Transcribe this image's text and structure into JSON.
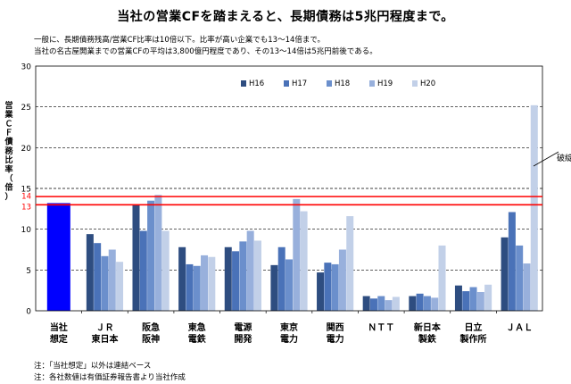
{
  "page": {
    "title": "当社の営業CFを踏まえると、長期債務は5兆円程度まで。",
    "desc_lines": [
      "一般に、長期債務残高/営業CF比率は10倍以下。比率が高い企業でも13～14倍まで。",
      "当社の名古屋開業までの営業CFの平均は3,800億円程度であり、その13～14倍は5兆円前後である。"
    ],
    "notes": [
      "注：「当社想定」以外は連結ベース",
      "注：各社数値は有価証券報告書より当社作成"
    ]
  },
  "colors": {
    "H16": "#2e4d80",
    "H17": "#4a72b8",
    "H18": "#6b8fcc",
    "H19": "#98b0dc",
    "H20": "#c2d0e8",
    "company": "#0000ff",
    "reference_line": "#ff0000"
  },
  "chart_data": {
    "type": "bar",
    "ylabel": "営業ＣＦ債務比率（倍）",
    "ylim": [
      0,
      30
    ],
    "yticks": [
      0,
      5,
      10,
      15,
      20,
      25,
      30
    ],
    "grid": true,
    "legend_position": "top-right",
    "categories": [
      "当社想定",
      "ＪＲ東日本",
      "阪急阪神",
      "東急電鉄",
      "電源開発",
      "東京電力",
      "関西電力",
      "ＮＴＴ",
      "新日本製鉄",
      "日立製作所",
      "ＪＡＬ"
    ],
    "category_labels": [
      [
        "当社",
        "想定"
      ],
      [
        "ＪＲ",
        "東日本"
      ],
      [
        "阪急",
        "阪神"
      ],
      [
        "東急",
        "電鉄"
      ],
      [
        "電源",
        "開発"
      ],
      [
        "東京",
        "電力"
      ],
      [
        "関西",
        "電力"
      ],
      [
        "ＮＴＴ",
        ""
      ],
      [
        "新日本",
        "製鉄"
      ],
      [
        "日立",
        "製作所"
      ],
      [
        "ＪＡＬ",
        ""
      ]
    ],
    "company_value": 13.2,
    "series": [
      {
        "name": "H16",
        "values": [
          null,
          9.4,
          13.0,
          7.8,
          7.8,
          5.6,
          4.7,
          1.8,
          1.8,
          3.1,
          9.0
        ]
      },
      {
        "name": "H17",
        "values": [
          null,
          8.3,
          9.8,
          5.7,
          7.3,
          7.8,
          5.9,
          1.5,
          2.1,
          2.4,
          12.1
        ]
      },
      {
        "name": "H18",
        "values": [
          null,
          6.7,
          13.5,
          5.5,
          8.5,
          6.3,
          5.7,
          1.8,
          1.8,
          2.9,
          8.0
        ]
      },
      {
        "name": "H19",
        "values": [
          null,
          7.5,
          14.2,
          6.8,
          9.8,
          13.7,
          7.5,
          1.3,
          1.6,
          2.3,
          5.8
        ]
      },
      {
        "name": "H20",
        "values": [
          null,
          6.0,
          9.8,
          6.6,
          8.6,
          12.2,
          11.6,
          1.7,
          8.0,
          3.2,
          25.2
        ]
      }
    ],
    "reference_lines": [
      {
        "value": 14,
        "label": "14"
      },
      {
        "value": 13,
        "label": "13"
      }
    ],
    "annotation": "破綻"
  }
}
